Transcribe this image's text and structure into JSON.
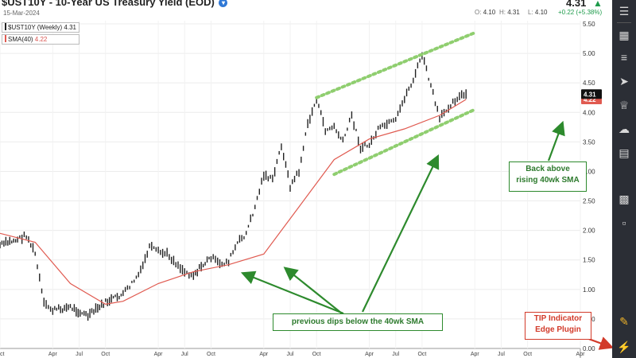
{
  "header": {
    "title": "$UST10Y - 10-Year US Treasury Yield (EOD)",
    "date": "15-Mar-2024",
    "last_price": "4.31",
    "ohlc": {
      "open_label": "O:",
      "open": "4.10",
      "high_label": "H:",
      "high": "4.31",
      "low_label": "L:",
      "low": "4.10",
      "change": "+0.22 (+5.38%)"
    }
  },
  "legend": [
    {
      "label": "$UST10Y (Weekly)",
      "value": "4.31",
      "color": "#222222"
    },
    {
      "label": "SMA(40)",
      "value": "4.22",
      "color": "#e05a50"
    }
  ],
  "annotations": {
    "back_above": [
      "Back above",
      "rising 40wk SMA"
    ],
    "dips": "previous dips below the 40wk SMA",
    "tip": [
      "TIP Indicator",
      "Edge Plugin"
    ]
  },
  "colors": {
    "price": "#222222",
    "sma": "#e05a50",
    "channel": "#8fce6f",
    "annotation": "#2d8a2d",
    "tip": "#d23a2a",
    "sidebar": "#2b2e35"
  },
  "sidebar_icons": [
    "sliders-icon",
    "grid-icon",
    "list-icon",
    "rocket-icon",
    "trophy-icon",
    "cloud-icon",
    "document-icon",
    "sandbox-icon",
    "chartlist-icon",
    "pencil-icon",
    "plug-icon"
  ],
  "chart_data": {
    "type": "line",
    "title": "$UST10Y - 10-Year US Treasury Yield (EOD)",
    "interval": "Weekly",
    "xlabel": "",
    "ylabel": "",
    "ylim": [
      0,
      5.5
    ],
    "y_ticks": [
      0.0,
      0.5,
      1.0,
      1.5,
      2.0,
      2.5,
      3.0,
      3.5,
      4.0,
      4.5,
      5.0,
      5.5
    ],
    "y_tick_labels": [
      "0.00",
      "0.50",
      "1.00",
      "1.50",
      "2.00",
      "2.50",
      "3.00",
      "3.50",
      "4.00",
      "4.50",
      "5.00",
      "5.50"
    ],
    "x_tick_labels": [
      "Oct",
      "Apr",
      "Jul",
      "Oct",
      "Apr",
      "Jul",
      "Oct",
      "Apr",
      "Jul",
      "Oct",
      "Apr",
      "Jul",
      "Oct",
      "Apr",
      "Jul",
      "Oct",
      "Apr"
    ],
    "x_ticks": [
      "2019-10",
      "2020-04",
      "2020-07",
      "2020-10",
      "2021-04",
      "2021-07",
      "2021-10",
      "2022-04",
      "2022-07",
      "2022-10",
      "2023-04",
      "2023-07",
      "2023-10",
      "2024-04",
      "2024-07",
      "2024-10",
      "2025-04"
    ],
    "xlim": [
      "2019-10",
      "2025-04"
    ],
    "grid": true,
    "legend_position": "top-left",
    "series": [
      {
        "name": "$UST10Y (Weekly)",
        "x": [
          "2019-10",
          "2019-12",
          "2020-01",
          "2020-02",
          "2020-03",
          "2020-04",
          "2020-06",
          "2020-08",
          "2020-10",
          "2020-12",
          "2021-01",
          "2021-02",
          "2021-03",
          "2021-04",
          "2021-05",
          "2021-06",
          "2021-07",
          "2021-08",
          "2021-10",
          "2021-11",
          "2021-12",
          "2022-01",
          "2022-02",
          "2022-03",
          "2022-04",
          "2022-05",
          "2022-06",
          "2022-07",
          "2022-08",
          "2022-09",
          "2022-10",
          "2022-11",
          "2022-12",
          "2023-01",
          "2023-02",
          "2023-03",
          "2023-04",
          "2023-05",
          "2023-06",
          "2023-07",
          "2023-08",
          "2023-09",
          "2023-10",
          "2023-11",
          "2023-12",
          "2024-01",
          "2024-02",
          "2024-03"
        ],
        "values": [
          1.75,
          1.85,
          1.92,
          1.6,
          0.75,
          0.65,
          0.7,
          0.55,
          0.78,
          0.92,
          1.1,
          1.3,
          1.72,
          1.63,
          1.6,
          1.45,
          1.3,
          1.25,
          1.55,
          1.42,
          1.48,
          1.78,
          1.95,
          2.4,
          2.95,
          2.85,
          3.45,
          2.75,
          3.0,
          3.8,
          4.22,
          3.7,
          3.75,
          3.5,
          3.95,
          3.4,
          3.45,
          3.7,
          3.8,
          3.85,
          4.25,
          4.55,
          4.98,
          4.45,
          3.88,
          4.1,
          4.25,
          4.31
        ]
      },
      {
        "name": "SMA(40)",
        "x": [
          "2019-10",
          "2020-02",
          "2020-06",
          "2020-10",
          "2020-12",
          "2021-04",
          "2021-08",
          "2021-12",
          "2022-04",
          "2022-08",
          "2022-12",
          "2023-04",
          "2023-08",
          "2023-12",
          "2024-03"
        ],
        "values": [
          1.95,
          1.8,
          1.1,
          0.75,
          0.8,
          1.1,
          1.3,
          1.42,
          1.6,
          2.4,
          3.2,
          3.55,
          3.72,
          3.95,
          4.22
        ]
      }
    ],
    "channel_lines": [
      {
        "x": [
          "2022-10",
          "2024-04"
        ],
        "values": [
          4.25,
          5.35
        ]
      },
      {
        "x": [
          "2022-12",
          "2024-04"
        ],
        "values": [
          2.95,
          4.05
        ]
      }
    ]
  }
}
